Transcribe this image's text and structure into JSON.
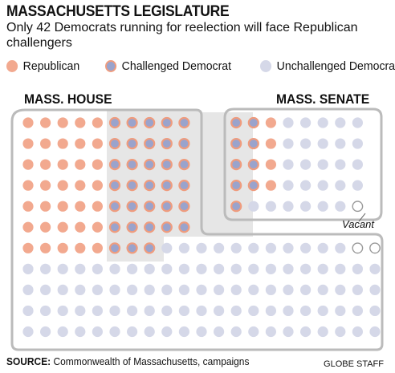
{
  "header": {
    "title": "MASSACHUSETTS LEGISLATURE",
    "subtitle": "Only 42 Democrats running for reelection will face Republican challengers"
  },
  "colors": {
    "republican": "#f2a98f",
    "challenged_fill": "#9aa3cc",
    "challenged_ring": "#ef9c7e",
    "unchallenged": "#d5d8e8",
    "vacant_stroke": "#999999",
    "frame": "#bbbbbb",
    "highlight": "#e6e6e6"
  },
  "legend": [
    {
      "key": "republican",
      "label": "Republican"
    },
    {
      "key": "challenged",
      "label": "Challenged Democrat"
    },
    {
      "key": "unchallenged",
      "label": "Unchallenged Democrat"
    }
  ],
  "chart_data": [
    {
      "type": "unit",
      "title": "MASS. HOUSE",
      "categories": [
        "Republican",
        "Challenged Democrat",
        "Unchallenged Democrat",
        "Vacant"
      ],
      "values": [
        35,
        33,
        90,
        2
      ],
      "rows": [
        {
          "republican": 5,
          "challenged": 5
        },
        {
          "republican": 5,
          "challenged": 5
        },
        {
          "republican": 5,
          "challenged": 5
        },
        {
          "republican": 5,
          "challenged": 5
        },
        {
          "republican": 5,
          "challenged": 5
        },
        {
          "republican": 5,
          "challenged": 5
        },
        {
          "republican": 5,
          "challenged": 3
        }
      ]
    },
    {
      "type": "unit",
      "title": "MASS. SENATE",
      "categories": [
        "Republican",
        "Challenged Democrat",
        "Unchallenged Democrat",
        "Vacant"
      ],
      "values": [
        4,
        9,
        26,
        1
      ],
      "rows": [
        {
          "challenged": 2,
          "republican": 1
        },
        {
          "challenged": 2,
          "republican": 1
        },
        {
          "challenged": 2,
          "republican": 1
        },
        {
          "challenged": 2,
          "republican": 1
        },
        {
          "challenged": 1
        }
      ]
    }
  ],
  "annotations": {
    "vacant": "Vacant"
  },
  "footer": {
    "source_label": "SOURCE:",
    "source_text": " Commonwealth of Massachusetts, campaigns",
    "credit": "GLOBE STAFF"
  }
}
